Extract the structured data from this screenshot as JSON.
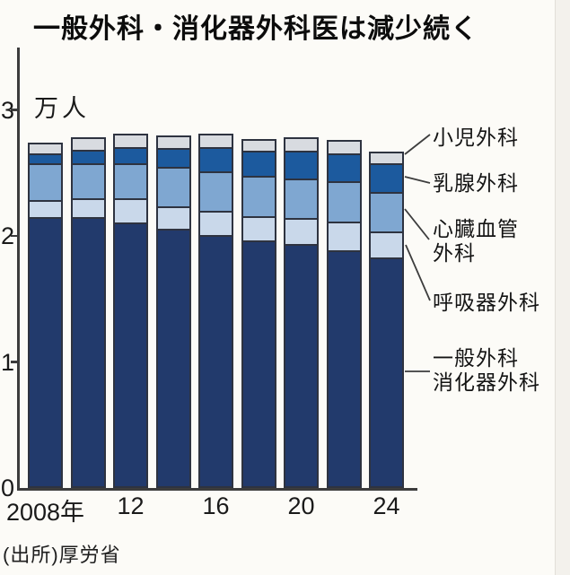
{
  "title": "一般外科・消化器外科医は減少続く",
  "source": "(出所)厚労省",
  "legend": {
    "items": [
      {
        "id": "pediatric-surgery",
        "lines": [
          "小児外科"
        ]
      },
      {
        "id": "breast-surgery",
        "lines": [
          "乳腺外科"
        ]
      },
      {
        "id": "cardiovascular-surgery",
        "lines": [
          "心臓血管",
          "外科"
        ]
      },
      {
        "id": "respiratory-surgery",
        "lines": [
          "呼吸器外科"
        ]
      },
      {
        "id": "general-digestive-surgery",
        "lines": [
          "一般外科",
          "消化器外科"
        ]
      }
    ]
  },
  "chart_data": {
    "type": "bar",
    "stacked": true,
    "title": "一般外科・消化器外科医は減少続く",
    "ylabel": "万人",
    "ylim": [
      0,
      3
    ],
    "yticks": [
      "0",
      "1",
      "2",
      "3"
    ],
    "x": [
      2008,
      2010,
      2012,
      2014,
      2016,
      2018,
      2020,
      2022,
      2024
    ],
    "x_tick_labels": [
      {
        "label": "2008年",
        "bar_index": 0
      },
      {
        "label": "12",
        "bar_index": 2
      },
      {
        "label": "16",
        "bar_index": 4
      },
      {
        "label": "20",
        "bar_index": 6
      },
      {
        "label": "24",
        "bar_index": 8
      }
    ],
    "series": [
      {
        "id": "general-digestive-surgery",
        "name": "一般外科・消化器外科",
        "color": "#223a6c",
        "values": [
          2.16,
          2.16,
          2.12,
          2.07,
          2.02,
          1.98,
          1.95,
          1.9,
          1.84
        ]
      },
      {
        "id": "respiratory-surgery",
        "name": "呼吸器外科",
        "color": "#c9d8ea",
        "values": [
          0.14,
          0.15,
          0.19,
          0.18,
          0.19,
          0.19,
          0.21,
          0.23,
          0.21
        ]
      },
      {
        "id": "cardiovascular-surgery",
        "name": "心臓血管外科",
        "color": "#7fa7d1",
        "values": [
          0.29,
          0.28,
          0.28,
          0.31,
          0.32,
          0.32,
          0.31,
          0.32,
          0.31
        ]
      },
      {
        "id": "breast-surgery",
        "name": "乳腺外科",
        "color": "#1c5a9e",
        "values": [
          0.08,
          0.11,
          0.13,
          0.15,
          0.19,
          0.2,
          0.22,
          0.22,
          0.23
        ]
      },
      {
        "id": "pediatric-surgery",
        "name": "小児外科",
        "color": "#d8dbe0",
        "values": [
          0.07,
          0.08,
          0.09,
          0.09,
          0.09,
          0.08,
          0.09,
          0.09,
          0.08
        ]
      }
    ]
  }
}
